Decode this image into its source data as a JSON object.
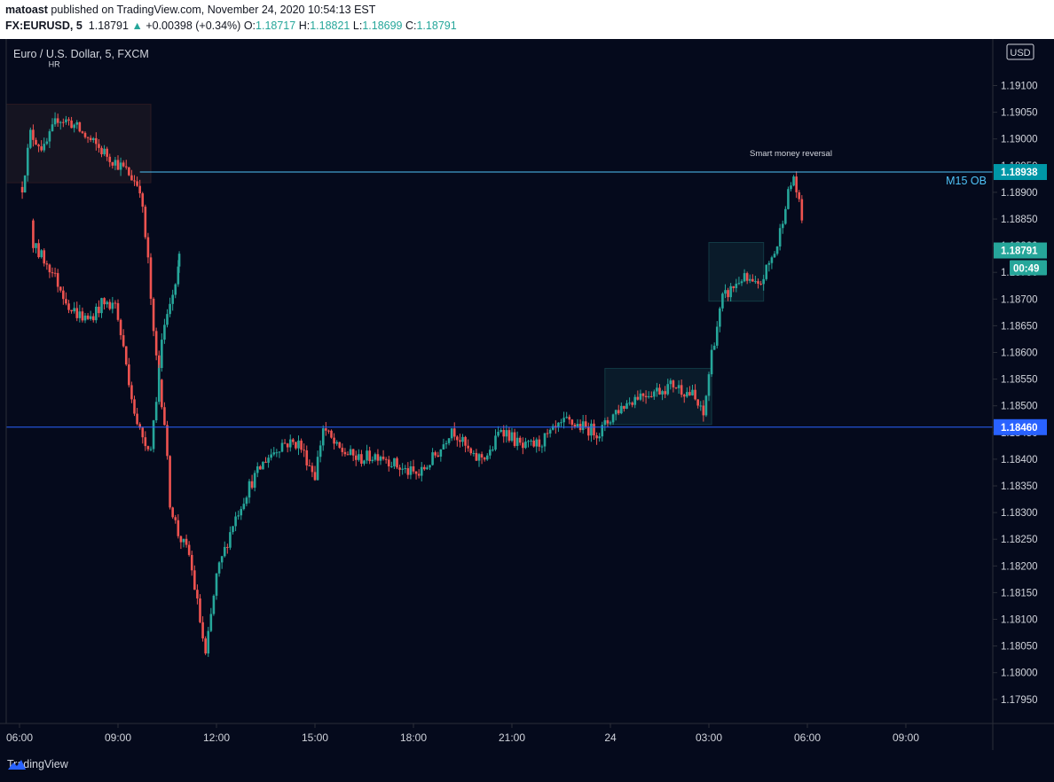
{
  "header": {
    "author": "matoast",
    "published_text": "published on TradingView.com, November 24, 2020 10:54:13 EST",
    "symbol": "FX:EURUSD, 5",
    "last": "1.18791",
    "change": "+0.00398 (+0.34%)",
    "open_label": "O:",
    "open": "1.18717",
    "high_label": "H:",
    "high": "1.18821",
    "low_label": "L:",
    "low": "1.18699",
    "close_label": "C:",
    "close": "1.18791",
    "up_arrow": "▲"
  },
  "chart_title": "Euro / U.S. Dollar, 5, FXCM",
  "currency_button": "USD",
  "countdown": "00:49",
  "footer": {
    "brand": "TradingView"
  },
  "colors": {
    "bg": "#050a1c",
    "up": "#26a69a",
    "down": "#ef5350",
    "level_line": "#2962ff",
    "ob_line": "#4fc3f7"
  },
  "chart_data": {
    "type": "candlestick",
    "title": "Euro / U.S. Dollar, 5, FXCM",
    "x_tick_labels": [
      "06:00",
      "09:00",
      "12:00",
      "15:00",
      "18:00",
      "21:00",
      "24",
      "03:00",
      "06:00",
      "09:00"
    ],
    "y_tick_labels": [
      "1.19100",
      "1.19050",
      "1.19000",
      "1.18950",
      "1.18900",
      "1.18850",
      "1.18800",
      "1.18750",
      "1.18700",
      "1.18650",
      "1.18600",
      "1.18550",
      "1.18500",
      "1.18450",
      "1.18400",
      "1.18350",
      "1.18300",
      "1.18250",
      "1.18200",
      "1.18150",
      "1.18100",
      "1.18050",
      "1.18000",
      "1.17950"
    ],
    "ylim": [
      1.1791,
      1.1918
    ],
    "price_labels": [
      {
        "value": 1.18938,
        "text": "1.18938"
      },
      {
        "value": 1.18791,
        "text": "1.18791"
      },
      {
        "value": 1.1846,
        "text": "1.18460"
      }
    ],
    "horizontal_lines": [
      {
        "price": 1.18938,
        "label": "M15 OB"
      },
      {
        "price": 1.1846,
        "label": ""
      }
    ],
    "annotations": [
      {
        "text": "HR",
        "time": "07:10"
      },
      {
        "text": "Smart money reversal",
        "time": "05:30"
      }
    ],
    "path_anchors": [
      [
        "05:55",
        1.1875
      ],
      [
        "06:05",
        1.1891
      ],
      [
        "06:20",
        1.1901
      ],
      [
        "06:45",
        1.1898
      ],
      [
        "07:10",
        1.1904
      ],
      [
        "07:35",
        1.1903
      ],
      [
        "08:05",
        1.19
      ],
      [
        "08:40",
        1.1897
      ],
      [
        "09:15",
        1.1894
      ],
      [
        "09:40",
        1.1891
      ],
      [
        "09:55",
        1.1877
      ],
      [
        "10:05",
        1.1863
      ],
      [
        "10:25",
        1.1847
      ],
      [
        "10:35",
        1.1832
      ],
      [
        "10:50",
        1.1826
      ],
      [
        "11:10",
        1.1822
      ],
      [
        "11:25",
        1.1813
      ],
      [
        "11:40",
        1.1803
      ],
      [
        "12:00",
        1.1818
      ],
      [
        "12:30",
        1.1828
      ],
      [
        "13:00",
        1.1835
      ],
      [
        "13:30",
        1.184
      ],
      [
        "14:00",
        1.1843
      ],
      [
        "14:30",
        1.1843
      ],
      [
        "15:00",
        1.1837
      ],
      [
        "15:15",
        1.1846
      ],
      [
        "15:40",
        1.1842
      ],
      [
        "16:20",
        1.184
      ],
      [
        "17:00",
        1.1841
      ],
      [
        "17:40",
        1.1838
      ],
      [
        "18:10",
        1.1837
      ],
      [
        "18:50",
        1.1842
      ],
      [
        "19:10",
        1.1846
      ],
      [
        "19:50",
        1.184
      ],
      [
        "20:20",
        1.1841
      ],
      [
        "20:40",
        1.1846
      ],
      [
        "21:20",
        1.1842
      ],
      [
        "21:50",
        1.1843
      ],
      [
        "22:40",
        1.1847
      ],
      [
        "23:10",
        1.1846
      ],
      [
        "23:40",
        1.1845
      ],
      [
        "00:10",
        1.1849
      ],
      [
        "00:50",
        1.1852
      ],
      [
        "01:30",
        1.1853
      ],
      [
        "01:55",
        1.1854
      ],
      [
        "02:30",
        1.1852
      ],
      [
        "02:50",
        1.1848
      ],
      [
        "03:05",
        1.186
      ],
      [
        "03:25",
        1.187
      ],
      [
        "04:00",
        1.1874
      ],
      [
        "04:30",
        1.1872
      ],
      [
        "05:05",
        1.188
      ],
      [
        "05:20",
        1.1888
      ],
      [
        "05:35",
        1.1893
      ],
      [
        "05:55",
        1.1882
      ],
      [
        "06:25",
        1.188
      ],
      [
        "06:55",
        1.1876
      ],
      [
        "07:35",
        1.1868
      ],
      [
        "08:05",
        1.1866
      ],
      [
        "08:30",
        1.1869
      ],
      [
        "08:55",
        1.1869
      ],
      [
        "09:20",
        1.1855
      ],
      [
        "09:35",
        1.1846
      ],
      [
        "10:00",
        1.1842
      ],
      [
        "10:20",
        1.1862
      ],
      [
        "10:45",
        1.1873
      ],
      [
        "10:52",
        1.1879
      ]
    ]
  }
}
